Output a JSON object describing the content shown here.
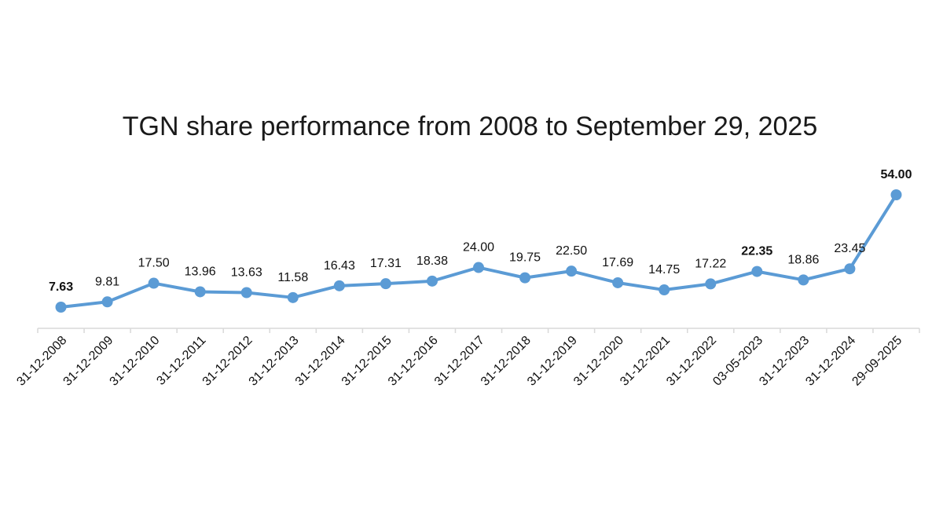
{
  "chart_data": {
    "type": "line",
    "title": "TGN share performance from 2008 to September 29, 2025",
    "xlabel": "",
    "ylabel": "",
    "categories": [
      "31-12-2008",
      "31-12-2009",
      "31-12-2010",
      "31-12-2011",
      "31-12-2012",
      "31-12-2013",
      "31-12-2014",
      "31-12-2015",
      "31-12-2016",
      "31-12-2017",
      "31-12-2018",
      "31-12-2019",
      "31-12-2020",
      "31-12-2021",
      "31-12-2022",
      "03-05-2023",
      "31-12-2023",
      "31-12-2024",
      "29-09-2025"
    ],
    "series": [
      {
        "values": [
          7.63,
          9.81,
          17.5,
          13.96,
          13.63,
          11.58,
          16.43,
          17.31,
          18.38,
          24.0,
          19.75,
          22.5,
          17.69,
          14.75,
          17.22,
          22.35,
          18.86,
          23.45,
          54.0
        ],
        "labels": [
          "7.63",
          "9.81",
          "17.50",
          "13.96",
          "13.63",
          "11.58",
          "16.43",
          "17.31",
          "18.38",
          "24.00",
          "19.75",
          "22.50",
          "17.69",
          "14.75",
          "17.22",
          "22.35",
          "18.86",
          "23.45",
          "54.00"
        ],
        "bold_labels": [
          "7.63",
          "22.35",
          "54.00"
        ],
        "color": "#5b9bd5"
      }
    ],
    "grid": false,
    "legend": "none",
    "axis_color": "#d9d9d9"
  }
}
